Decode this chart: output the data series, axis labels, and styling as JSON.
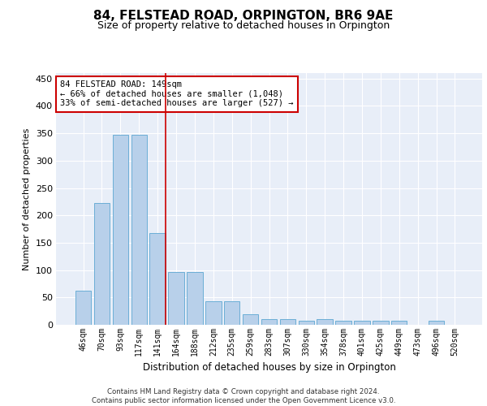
{
  "title1": "84, FELSTEAD ROAD, ORPINGTON, BR6 9AE",
  "title2": "Size of property relative to detached houses in Orpington",
  "xlabel": "Distribution of detached houses by size in Orpington",
  "ylabel": "Number of detached properties",
  "categories": [
    "46sqm",
    "70sqm",
    "93sqm",
    "117sqm",
    "141sqm",
    "164sqm",
    "188sqm",
    "212sqm",
    "235sqm",
    "259sqm",
    "283sqm",
    "307sqm",
    "330sqm",
    "354sqm",
    "378sqm",
    "401sqm",
    "425sqm",
    "449sqm",
    "473sqm",
    "496sqm",
    "520sqm"
  ],
  "values": [
    63,
    222,
    347,
    347,
    168,
    97,
    97,
    43,
    43,
    20,
    10,
    10,
    7,
    10,
    7,
    7,
    7,
    7,
    0,
    7,
    0
  ],
  "bar_color": "#b8d0ea",
  "bar_edge_color": "#6baed6",
  "vline_color": "#cc0000",
  "vline_x": 4.42,
  "annotation_text": "84 FELSTEAD ROAD: 149sqm\n← 66% of detached houses are smaller (1,048)\n33% of semi-detached houses are larger (527) →",
  "annotation_box_color": "#ffffff",
  "annotation_box_edge": "#cc0000",
  "footer_text": "Contains HM Land Registry data © Crown copyright and database right 2024.\nContains public sector information licensed under the Open Government Licence v3.0.",
  "ylim": [
    0,
    460
  ],
  "yticks": [
    0,
    50,
    100,
    150,
    200,
    250,
    300,
    350,
    400,
    450
  ],
  "background_color": "#e8eef8",
  "grid_color": "#ffffff",
  "title1_fontsize": 11,
  "title2_fontsize": 9,
  "ylabel_fontsize": 8,
  "xlabel_fontsize": 8.5
}
